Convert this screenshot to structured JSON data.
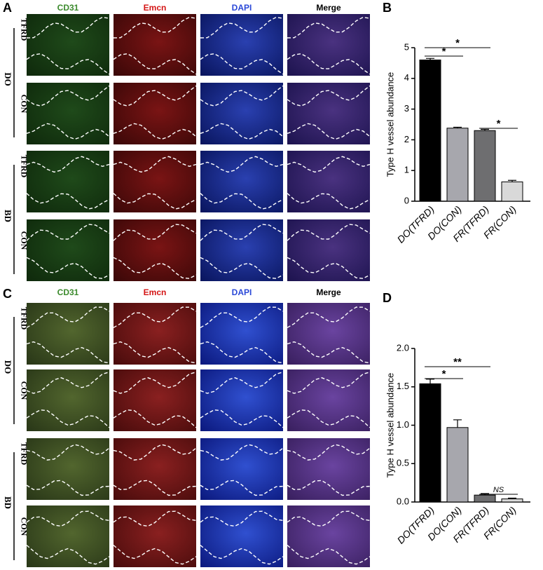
{
  "panel_labels": [
    "A",
    "B",
    "C",
    "D"
  ],
  "image_panels": [
    {
      "channels": [
        "CD31",
        "Emcn",
        "DAPI",
        "Merge"
      ],
      "groups": [
        {
          "label": "DO",
          "rows": [
            "TFRD",
            "CON"
          ]
        },
        {
          "label": "BD",
          "rows": [
            "TFRD",
            "CON"
          ]
        }
      ]
    },
    {
      "channels": [
        "CD31",
        "Emcn",
        "DAPI",
        "Merge"
      ],
      "groups": [
        {
          "label": "DO",
          "rows": [
            "TFRD",
            "CON"
          ]
        },
        {
          "label": "BD",
          "rows": [
            "TFRD",
            "CON"
          ]
        }
      ]
    }
  ],
  "chart_data": [
    {
      "type": "bar",
      "ylabel": "Type H vessel abundance",
      "categories": [
        "DO(TFRD)",
        "DO(CON)",
        "FR(TFRD)",
        "FR(CON)"
      ],
      "values": [
        4.6,
        2.38,
        2.3,
        0.63
      ],
      "errors": [
        0.05,
        0.03,
        0.04,
        0.05
      ],
      "colors": [
        "#000000",
        "#a7a7ad",
        "#6e6e70",
        "#d9d9d9"
      ],
      "ylim": [
        0,
        5
      ],
      "yticks": [
        0,
        1,
        2,
        3,
        4,
        5
      ],
      "annotations": [
        "*",
        "*",
        "*"
      ]
    },
    {
      "type": "bar",
      "ylabel": "Type H vessel abundance",
      "categories": [
        "DO(TFRD)",
        "DO(CON)",
        "FR(TFRD)",
        "FR(CON)"
      ],
      "values": [
        1.54,
        0.97,
        0.09,
        0.04
      ],
      "errors": [
        0.06,
        0.1,
        0.02,
        0.01
      ],
      "colors": [
        "#000000",
        "#a7a7ad",
        "#6e6e70",
        "#d9d9d9"
      ],
      "ylim": [
        0,
        2
      ],
      "yticks": [
        {
          "value": 0,
          "label": "0.0"
        },
        {
          "value": 0.5,
          "label": "0.5"
        },
        {
          "value": 1,
          "label": "1.0"
        },
        {
          "value": 1.5,
          "label": "1.5"
        },
        {
          "value": 2,
          "label": "2.0"
        }
      ],
      "annotations": [
        "*",
        "**",
        "NS"
      ]
    }
  ]
}
